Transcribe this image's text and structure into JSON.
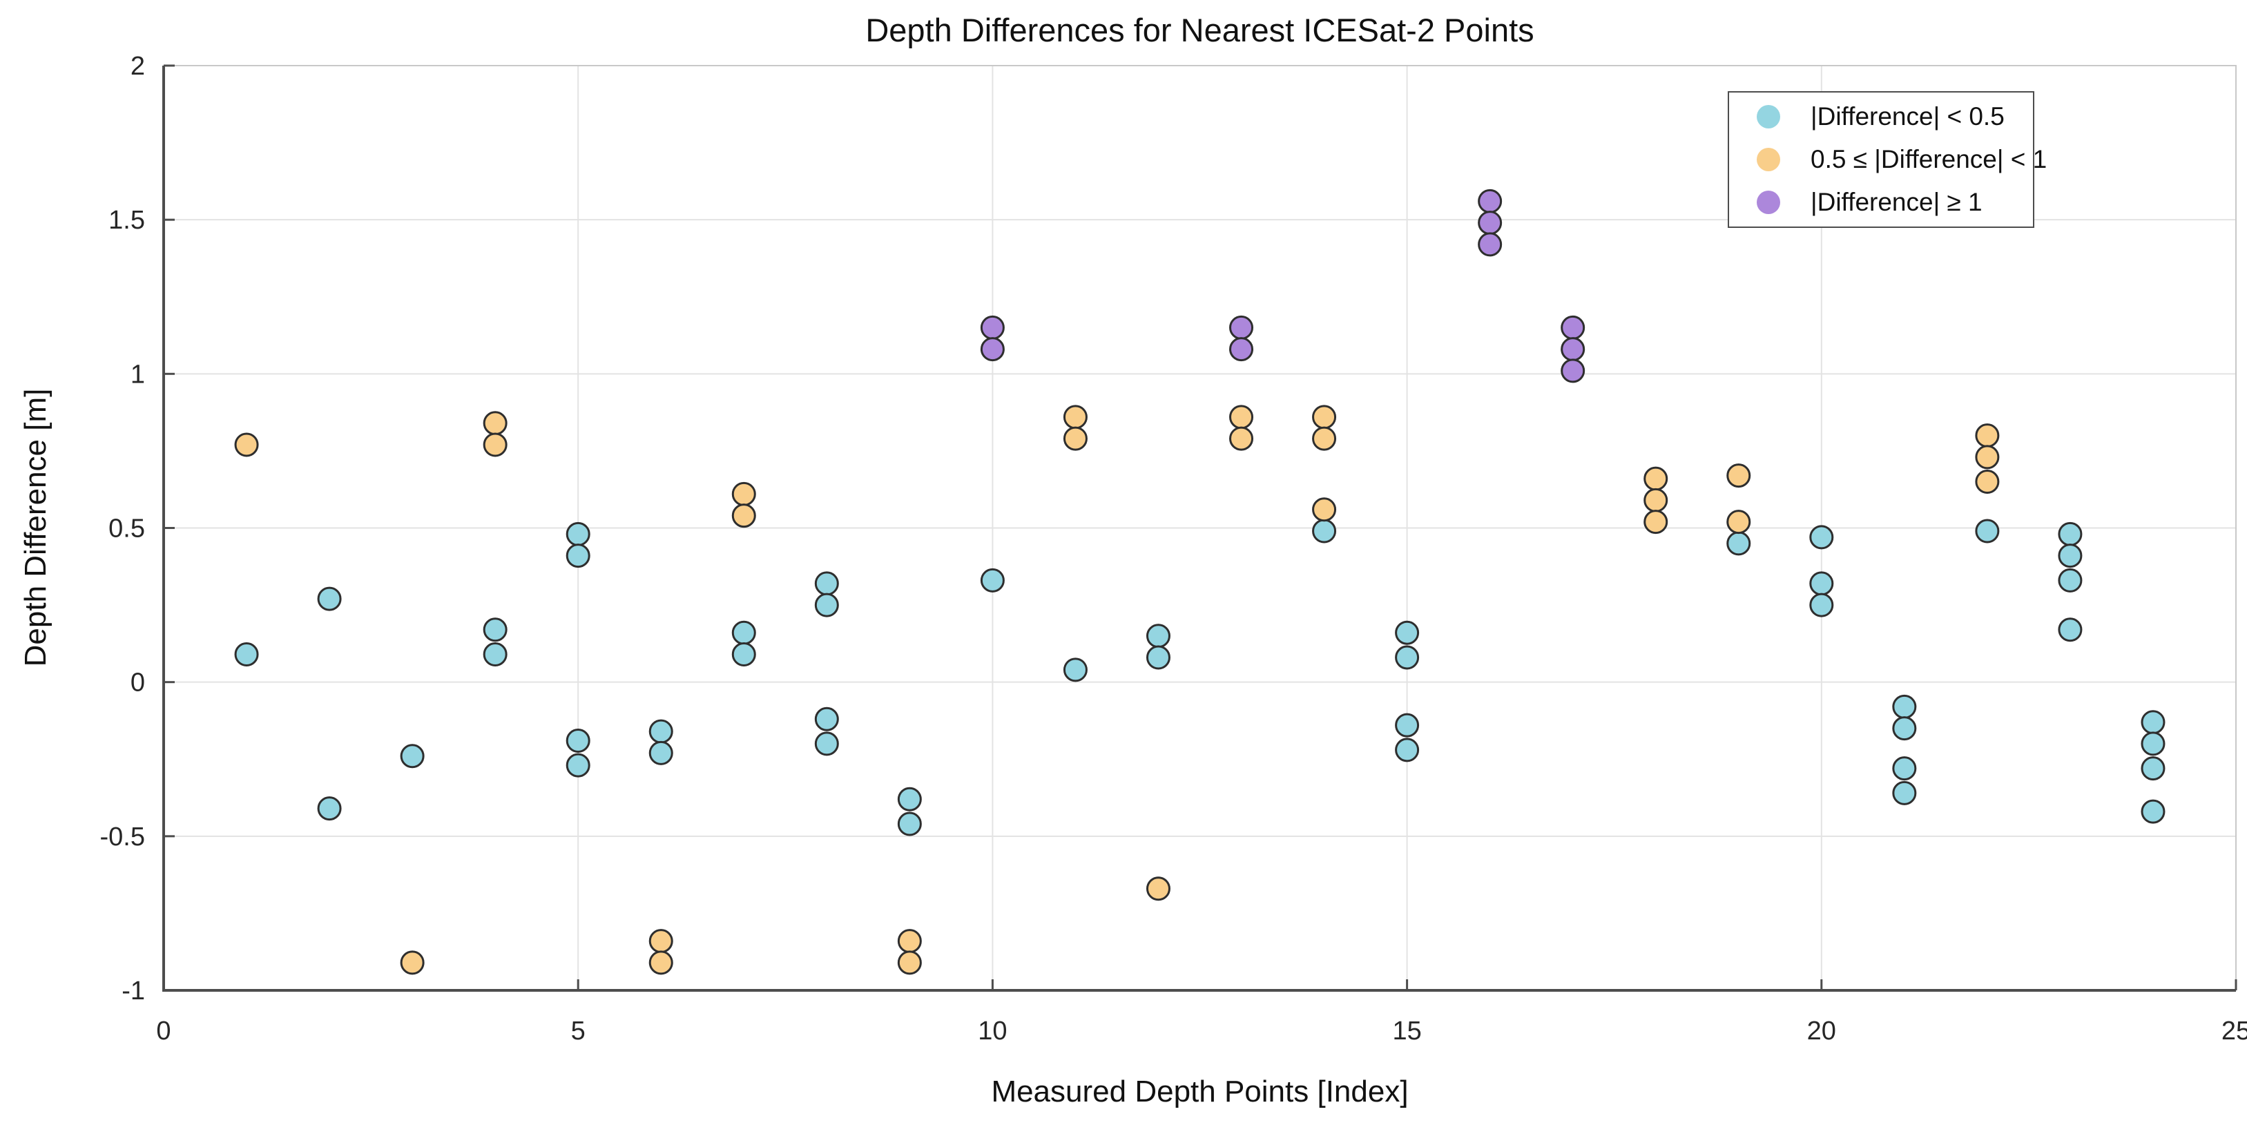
{
  "chart_data": {
    "type": "scatter",
    "title": "Depth Differences for Nearest ICESat-2 Points",
    "xlabel": "Measured Depth Points [Index]",
    "ylabel": "Depth Difference [m]",
    "xlim": [
      0,
      25
    ],
    "ylim": [
      -1,
      2
    ],
    "grid": true,
    "legend_position": "top-right",
    "x_ticks": [
      0,
      5,
      10,
      15,
      20,
      25
    ],
    "x_tick_labels": [
      "0",
      "5",
      "10",
      "15",
      "20",
      "25"
    ],
    "y_ticks": [
      -1,
      -0.5,
      0,
      0.5,
      1,
      1.5,
      2
    ],
    "y_tick_labels": [
      "-1",
      "-0.5",
      "0",
      "0.5",
      "1",
      "1.5",
      "2"
    ],
    "marker": {
      "radius_px": 16,
      "edge_color": "#2e2e2e",
      "edge_width": 3
    },
    "series": [
      {
        "name": "|Difference| < 0.5",
        "color": "#94d5e1",
        "points": [
          [
            1,
            0.09
          ],
          [
            2,
            0.27
          ],
          [
            2,
            -0.41
          ],
          [
            3,
            -0.24
          ],
          [
            4,
            0.17
          ],
          [
            4,
            0.09
          ],
          [
            5,
            0.48
          ],
          [
            5,
            0.41
          ],
          [
            5,
            -0.19
          ],
          [
            5,
            -0.27
          ],
          [
            6,
            -0.16
          ],
          [
            6,
            -0.23
          ],
          [
            7,
            0.16
          ],
          [
            7,
            0.09
          ],
          [
            8,
            0.32
          ],
          [
            8,
            0.25
          ],
          [
            8,
            -0.12
          ],
          [
            8,
            -0.2
          ],
          [
            9,
            -0.38
          ],
          [
            9,
            -0.46
          ],
          [
            10,
            0.33
          ],
          [
            11,
            0.04
          ],
          [
            12,
            0.15
          ],
          [
            12,
            0.08
          ],
          [
            14,
            0.49
          ],
          [
            15,
            0.16
          ],
          [
            15,
            0.08
          ],
          [
            15,
            -0.14
          ],
          [
            15,
            -0.22
          ],
          [
            19,
            0.45
          ],
          [
            20,
            0.47
          ],
          [
            20,
            0.32
          ],
          [
            20,
            0.25
          ],
          [
            21,
            -0.08
          ],
          [
            21,
            -0.15
          ],
          [
            21,
            -0.28
          ],
          [
            21,
            -0.36
          ],
          [
            22,
            0.49
          ],
          [
            23,
            0.48
          ],
          [
            23,
            0.41
          ],
          [
            23,
            0.33
          ],
          [
            23,
            0.17
          ],
          [
            24,
            -0.13
          ],
          [
            24,
            -0.2
          ],
          [
            24,
            -0.28
          ],
          [
            24,
            -0.42
          ]
        ]
      },
      {
        "name": "0.5 ≤ |Difference| < 1",
        "color": "#f9ce8a",
        "points": [
          [
            1,
            0.77
          ],
          [
            3,
            -0.91
          ],
          [
            4,
            0.84
          ],
          [
            4,
            0.77
          ],
          [
            6,
            -0.84
          ],
          [
            6,
            -0.91
          ],
          [
            7,
            0.61
          ],
          [
            7,
            0.54
          ],
          [
            9,
            -0.84
          ],
          [
            9,
            -0.91
          ],
          [
            11,
            0.86
          ],
          [
            11,
            0.79
          ],
          [
            12,
            -0.67
          ],
          [
            13,
            0.86
          ],
          [
            13,
            0.79
          ],
          [
            14,
            0.86
          ],
          [
            14,
            0.79
          ],
          [
            14,
            0.56
          ],
          [
            18,
            0.66
          ],
          [
            18,
            0.59
          ],
          [
            18,
            0.52
          ],
          [
            19,
            0.67
          ],
          [
            19,
            0.52
          ],
          [
            22,
            0.8
          ],
          [
            22,
            0.73
          ],
          [
            22,
            0.65
          ]
        ]
      },
      {
        "name": "|Difference| ≥ 1",
        "color": "#ac87db",
        "points": [
          [
            10,
            1.15
          ],
          [
            10,
            1.08
          ],
          [
            13,
            1.15
          ],
          [
            13,
            1.08
          ],
          [
            16,
            1.56
          ],
          [
            16,
            1.49
          ],
          [
            16,
            1.42
          ],
          [
            17,
            1.15
          ],
          [
            17,
            1.08
          ],
          [
            17,
            1.01
          ]
        ]
      }
    ],
    "style": {
      "grid_color": "#e3e3e3",
      "box_light_color": "#c8c8c8",
      "axis_dark_color": "#4d4d4d",
      "tick_label_color": "#262626",
      "background": "#ffffff"
    }
  }
}
